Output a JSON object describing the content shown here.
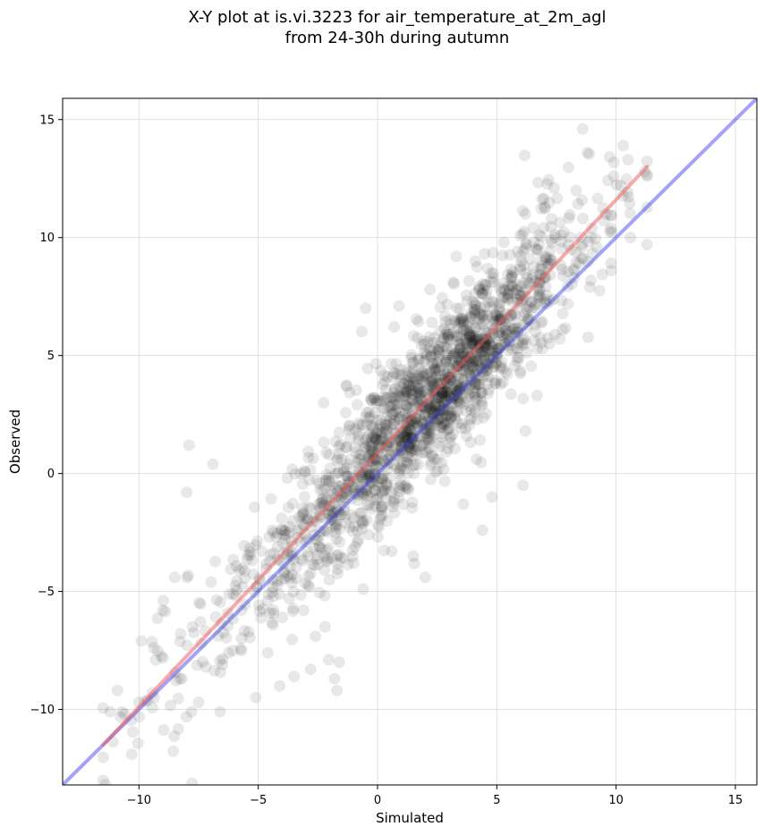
{
  "chart_data": {
    "type": "scatter",
    "title_line1": "X-Y plot at is.vi.3223 for air_temperature_at_2m_agl",
    "title_line2": "from 24-30h during autumn",
    "xlabel": "Simulated",
    "ylabel": "Observed",
    "xlim": [
      -13.2,
      15.9
    ],
    "ylim": [
      -13.2,
      15.9
    ],
    "xticks": [
      -10,
      -5,
      0,
      5,
      10,
      15
    ],
    "yticks": [
      -10,
      -5,
      0,
      5,
      10,
      15
    ],
    "xtick_labels": [
      "−10",
      "−5",
      "0",
      "5",
      "10",
      "15"
    ],
    "ytick_labels": [
      "−10",
      "−5",
      "0",
      "5",
      "10",
      "15"
    ],
    "grid": true,
    "point_color": "#000000",
    "point_alpha": 0.09,
    "one_to_one_line": {
      "color": "#3333ee",
      "x": [
        -13.2,
        15.9
      ],
      "y": [
        -13.2,
        15.9
      ]
    },
    "fit_line": {
      "color": "#ee5555",
      "x": [
        -11.5,
        11.3
      ],
      "y": [
        -11.5,
        13.0
      ]
    },
    "scatter_summary": {
      "approx_count": 1800,
      "trend_slope": 1.07,
      "trend_intercept": 0.8,
      "x_range": [
        -11.5,
        11.3
      ]
    },
    "outlier_points": [
      [
        -7.9,
        1.2
      ],
      [
        -8.0,
        -0.8
      ],
      [
        -6.9,
        0.4
      ],
      [
        -10.3,
        -11.9
      ],
      [
        -10.9,
        -9.2
      ],
      [
        -11.2,
        -10.1
      ],
      [
        -9.9,
        -7.1
      ],
      [
        -9.0,
        -5.8
      ],
      [
        -8.5,
        -4.4
      ],
      [
        -7.5,
        -9.7
      ],
      [
        -7.8,
        -10.1
      ],
      [
        -6.6,
        -10.1
      ],
      [
        -5.1,
        -9.5
      ],
      [
        -4.1,
        -9.0
      ],
      [
        -3.5,
        -8.6
      ],
      [
        -1.7,
        -9.2
      ],
      [
        -1.8,
        -8.7
      ],
      [
        -2.6,
        -6.9
      ],
      [
        -3.1,
        -5.8
      ],
      [
        -5.7,
        -7.5
      ],
      [
        -8.2,
        -8.7
      ],
      [
        -10.0,
        -9.7
      ],
      [
        -10.6,
        -10.2
      ],
      [
        -6.5,
        -8.1
      ],
      [
        -4.6,
        -7.6
      ],
      [
        -2.8,
        -8.3
      ],
      [
        -1.6,
        -8.0
      ],
      [
        -2.2,
        -6.5
      ],
      [
        -7.2,
        -8.2
      ],
      [
        -9.3,
        -7.9
      ],
      [
        8.6,
        14.6
      ],
      [
        8.8,
        13.6
      ],
      [
        10.3,
        13.9
      ],
      [
        10.5,
        13.3
      ],
      [
        11.2,
        12.8
      ],
      [
        9.9,
        12.6
      ],
      [
        11.3,
        9.7
      ],
      [
        10.6,
        10.0
      ],
      [
        9.8,
        8.6
      ],
      [
        8.9,
        7.9
      ],
      [
        6.2,
        1.8
      ],
      [
        6.1,
        -0.5
      ],
      [
        4.8,
        -1.0
      ],
      [
        4.4,
        -2.4
      ],
      [
        3.6,
        -1.3
      ],
      [
        2.0,
        -4.4
      ],
      [
        1.5,
        -3.5
      ],
      [
        0.6,
        -3.3
      ],
      [
        -0.6,
        -4.9
      ],
      [
        -1.0,
        -3.8
      ],
      [
        -0.5,
        7.0
      ],
      [
        0.9,
        7.1
      ],
      [
        2.2,
        7.8
      ],
      [
        3.3,
        9.2
      ],
      [
        4.1,
        9.0
      ],
      [
        5.3,
        9.8
      ],
      [
        6.2,
        11.0
      ],
      [
        7.0,
        11.3
      ],
      [
        7.4,
        12.1
      ],
      [
        -1.3,
        3.7
      ]
    ]
  }
}
